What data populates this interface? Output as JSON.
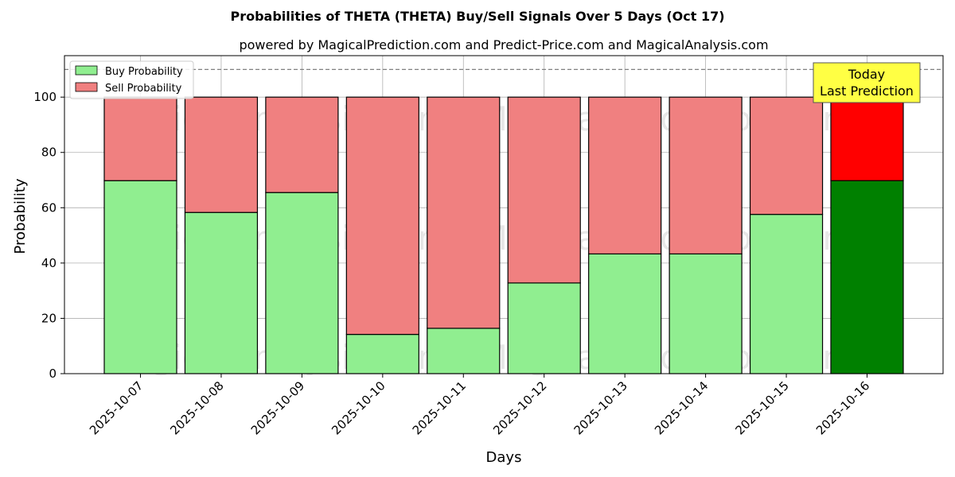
{
  "chart_data": {
    "type": "bar",
    "stacked": true,
    "title": "Probabilities of THETA (THETA) Buy/Sell Signals Over 5 Days (Oct 17)",
    "subtitle": "powered by MagicalPrediction.com and Predict-Price.com and MagicalAnalysis.com",
    "xlabel": "Days",
    "ylabel": "Probability",
    "ylim": [
      0,
      115
    ],
    "yticks": [
      0,
      20,
      40,
      60,
      80,
      100
    ],
    "reference_line": 110,
    "grid": true,
    "legend_position": "top-left",
    "categories": [
      "2025-10-07",
      "2025-10-08",
      "2025-10-09",
      "2025-10-10",
      "2025-10-11",
      "2025-10-12",
      "2025-10-13",
      "2025-10-14",
      "2025-10-15",
      "2025-10-16"
    ],
    "series": [
      {
        "name": "Buy Probability",
        "color": "#90ee90",
        "highlight_color": "#008000",
        "values": [
          69.8,
          58.3,
          65.5,
          14.2,
          16.4,
          32.8,
          43.3,
          43.3,
          57.6,
          69.8
        ]
      },
      {
        "name": "Sell Probability",
        "color": "#f08080",
        "highlight_color": "#ff0000",
        "values": [
          30.2,
          41.7,
          34.5,
          85.8,
          83.6,
          67.2,
          56.7,
          56.7,
          42.4,
          30.2
        ]
      }
    ],
    "highlight_index": 9,
    "annotation": {
      "line1": "Today",
      "line2": "Last Prediction",
      "color": "#ffff44"
    },
    "watermarks": [
      "MagicalAnalysis.com",
      "MagicalPrediction.com"
    ]
  }
}
